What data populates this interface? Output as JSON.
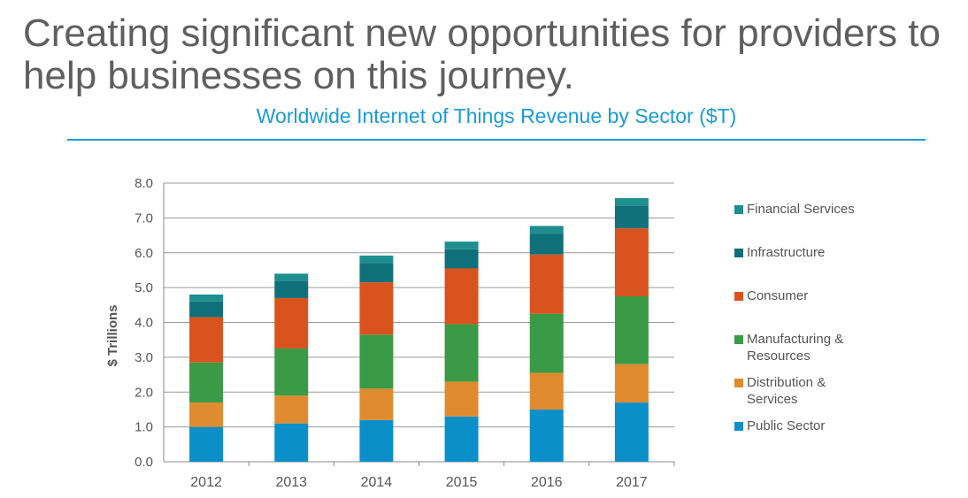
{
  "slide": {
    "headline": "Creating significant new opportunities for providers to help businesses on this journey.",
    "subtitle": "Worldwide Internet of Things Revenue by Sector ($T)"
  },
  "chart_data": {
    "type": "bar",
    "stacked": true,
    "title": "Worldwide Internet of Things Revenue by Sector ($T)",
    "xlabel": "",
    "ylabel": "$ Trillions",
    "ylim": [
      0,
      8
    ],
    "yticks": [
      "0.0",
      "1.0",
      "2.0",
      "3.0",
      "4.0",
      "5.0",
      "6.0",
      "7.0",
      "8.0"
    ],
    "grid": true,
    "legend_position": "right",
    "categories": [
      "2012",
      "2013",
      "2014",
      "2015",
      "2016",
      "2017"
    ],
    "series": [
      {
        "name": "Public Sector",
        "color": "#0b8fc8",
        "values": [
          1.0,
          1.1,
          1.2,
          1.3,
          1.5,
          1.7
        ]
      },
      {
        "name": "Distribution & Services",
        "color": "#e08b2f",
        "values": [
          0.7,
          0.8,
          0.9,
          1.0,
          1.05,
          1.1
        ]
      },
      {
        "name": "Manufacturing & Resources",
        "color": "#3b9a45",
        "values": [
          1.15,
          1.35,
          1.55,
          1.65,
          1.7,
          1.95
        ]
      },
      {
        "name": "Consumer",
        "color": "#d9531e",
        "values": [
          1.3,
          1.45,
          1.5,
          1.6,
          1.7,
          1.95
        ]
      },
      {
        "name": "Infrastructure",
        "color": "#10707a",
        "values": [
          0.45,
          0.5,
          0.55,
          0.55,
          0.6,
          0.65
        ]
      },
      {
        "name": "Financial Services",
        "color": "#1f8e8e",
        "values": [
          0.2,
          0.2,
          0.22,
          0.22,
          0.22,
          0.22
        ]
      }
    ],
    "legend_labels": [
      "Financial Services",
      "Infrastructure",
      "Consumer",
      "Manufacturing &\nResources",
      "Distribution &\nServices",
      "Public Sector"
    ]
  }
}
